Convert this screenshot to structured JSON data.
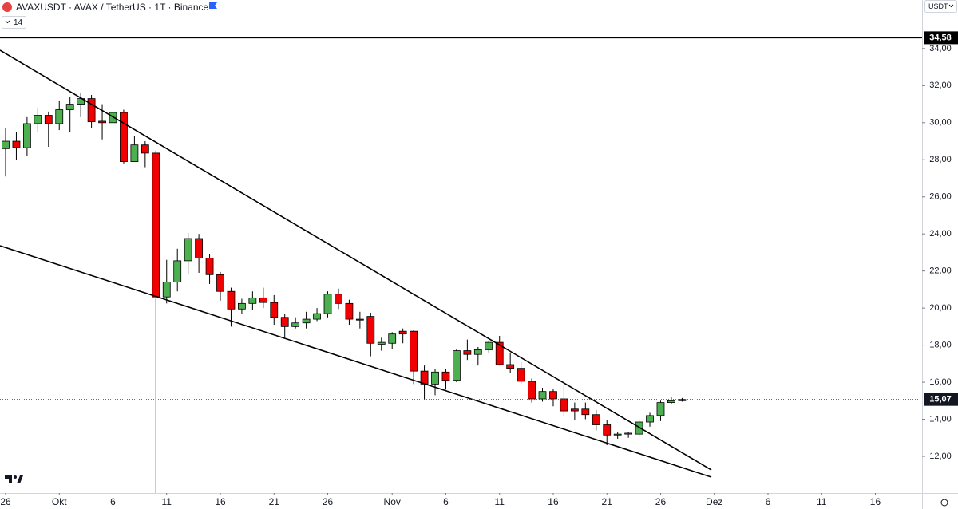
{
  "header": {
    "title": "AVAXUSDT · AVAX / TetherUS · 1T · Binance",
    "indicator_badge": "14",
    "currency": "USDT"
  },
  "chart_data": {
    "type": "candlestick",
    "x": [
      0,
      1,
      2,
      3,
      4,
      5,
      6,
      7,
      8,
      9,
      10,
      11,
      12,
      13,
      14,
      15,
      16,
      17,
      18,
      19,
      20,
      21,
      22,
      23,
      24,
      25,
      26,
      27,
      28,
      29,
      30,
      31,
      32,
      33,
      34,
      35,
      36,
      37,
      38,
      39,
      40,
      41,
      42,
      43,
      44,
      45,
      46,
      47,
      48,
      49,
      50,
      51,
      52,
      53,
      54,
      55,
      56,
      57,
      58,
      59,
      60,
      61,
      62,
      63
    ],
    "series": [
      {
        "up_color": "#4caf50",
        "down_color": "#f00000",
        "open": [
          28.6,
          29.0,
          28.65,
          29.95,
          30.4,
          29.95,
          30.7,
          31.0,
          31.3,
          30.08,
          30.0,
          30.55,
          27.9,
          28.8,
          28.36,
          20.6,
          21.4,
          22.55,
          23.75,
          22.7,
          21.8,
          20.9,
          19.95,
          20.25,
          20.55,
          20.3,
          19.5,
          19.0,
          19.2,
          19.4,
          19.7,
          20.75,
          20.25,
          19.4,
          19.55,
          18.05,
          18.1,
          18.75,
          18.75,
          16.6,
          15.9,
          16.55,
          16.1,
          17.7,
          17.5,
          17.75,
          18.15,
          16.95,
          16.75,
          16.05,
          15.1,
          15.5,
          15.1,
          14.55,
          14.55,
          14.25,
          13.7,
          13.15,
          13.2,
          13.2,
          13.85,
          14.2,
          14.9,
          15.0
        ],
        "high": [
          29.7,
          29.5,
          30.3,
          30.8,
          30.6,
          31.2,
          31.4,
          31.6,
          31.5,
          31.0,
          31.0,
          30.7,
          29.3,
          29.0,
          28.5,
          22.6,
          23.2,
          24.05,
          24.0,
          22.9,
          21.95,
          21.1,
          20.5,
          20.9,
          21.1,
          20.7,
          19.7,
          19.5,
          19.8,
          20.0,
          20.9,
          21.05,
          20.45,
          19.8,
          19.75,
          18.4,
          18.7,
          18.9,
          18.8,
          16.9,
          16.7,
          16.7,
          17.8,
          18.3,
          17.9,
          18.25,
          18.5,
          17.6,
          17.1,
          16.2,
          15.7,
          15.65,
          15.8,
          14.9,
          14.9,
          14.5,
          13.95,
          13.3,
          13.3,
          14.0,
          14.35,
          15.0,
          15.2,
          15.15
        ],
        "low": [
          27.1,
          28.0,
          28.2,
          29.5,
          28.7,
          29.6,
          29.5,
          30.3,
          29.7,
          29.1,
          29.8,
          27.8,
          27.9,
          27.6,
          20.4,
          20.25,
          20.9,
          21.8,
          21.9,
          21.3,
          20.4,
          19.0,
          19.7,
          19.9,
          20.0,
          19.1,
          18.4,
          18.9,
          18.9,
          19.3,
          19.5,
          19.95,
          19.1,
          18.9,
          17.4,
          17.7,
          17.8,
          18.1,
          15.9,
          15.05,
          15.3,
          15.6,
          16.0,
          17.2,
          16.9,
          17.6,
          16.9,
          16.5,
          15.9,
          14.9,
          14.95,
          14.7,
          14.2,
          13.95,
          14.0,
          13.4,
          12.6,
          12.95,
          13.0,
          13.1,
          13.6,
          13.9,
          14.8,
          14.95
        ],
        "close": [
          29.0,
          28.65,
          29.95,
          30.4,
          29.95,
          30.7,
          31.0,
          31.3,
          30.05,
          30.0,
          30.55,
          27.9,
          28.8,
          28.36,
          20.6,
          21.4,
          22.55,
          23.75,
          22.7,
          21.8,
          20.9,
          19.95,
          20.25,
          20.55,
          20.3,
          19.5,
          19.0,
          19.2,
          19.4,
          19.7,
          20.75,
          20.25,
          19.4,
          19.35,
          18.1,
          18.15,
          18.6,
          18.6,
          16.6,
          15.9,
          16.55,
          16.1,
          17.7,
          17.5,
          17.75,
          18.15,
          16.95,
          16.75,
          16.05,
          15.1,
          15.5,
          15.1,
          14.45,
          14.45,
          14.25,
          13.7,
          13.15,
          13.2,
          13.25,
          13.85,
          14.2,
          14.9,
          15.0,
          15.07
        ]
      }
    ],
    "xlim": [
      -0.52,
      85.35
    ],
    "xticks": [
      {
        "value": 0,
        "label": "26"
      },
      {
        "value": 5,
        "label": "Okt"
      },
      {
        "value": 10,
        "label": "6"
      },
      {
        "value": 15,
        "label": "11"
      },
      {
        "value": 20,
        "label": "16"
      },
      {
        "value": 25,
        "label": "21"
      },
      {
        "value": 30,
        "label": "26"
      },
      {
        "value": 36,
        "label": "Nov"
      },
      {
        "value": 41,
        "label": "6"
      },
      {
        "value": 46,
        "label": "11"
      },
      {
        "value": 51,
        "label": "16"
      },
      {
        "value": 56,
        "label": "21"
      },
      {
        "value": 61,
        "label": "26"
      },
      {
        "value": 66,
        "label": "Dez"
      },
      {
        "value": 71,
        "label": "6"
      },
      {
        "value": 76,
        "label": "11"
      },
      {
        "value": 81,
        "label": "16"
      }
    ],
    "ylim": [
      10.02,
      36.62
    ],
    "yticks": [
      {
        "value": 12,
        "label": "12,00"
      },
      {
        "value": 14,
        "label": "14,00"
      },
      {
        "value": 16,
        "label": "16,00"
      },
      {
        "value": 18,
        "label": "18,00"
      },
      {
        "value": 20,
        "label": "20,00"
      },
      {
        "value": 22,
        "label": "22,00"
      },
      {
        "value": 24,
        "label": "24,00"
      },
      {
        "value": 26,
        "label": "26,00"
      },
      {
        "value": 28,
        "label": "28,00"
      },
      {
        "value": 30,
        "label": "30,00"
      },
      {
        "value": 32,
        "label": "32,00"
      },
      {
        "value": 34,
        "label": "34,00"
      }
    ],
    "horizontal_line": {
      "value": 34.58,
      "label": "34,58",
      "color": "#000000"
    },
    "last_price": {
      "value": 15.07,
      "label": "15,07"
    }
  }
}
